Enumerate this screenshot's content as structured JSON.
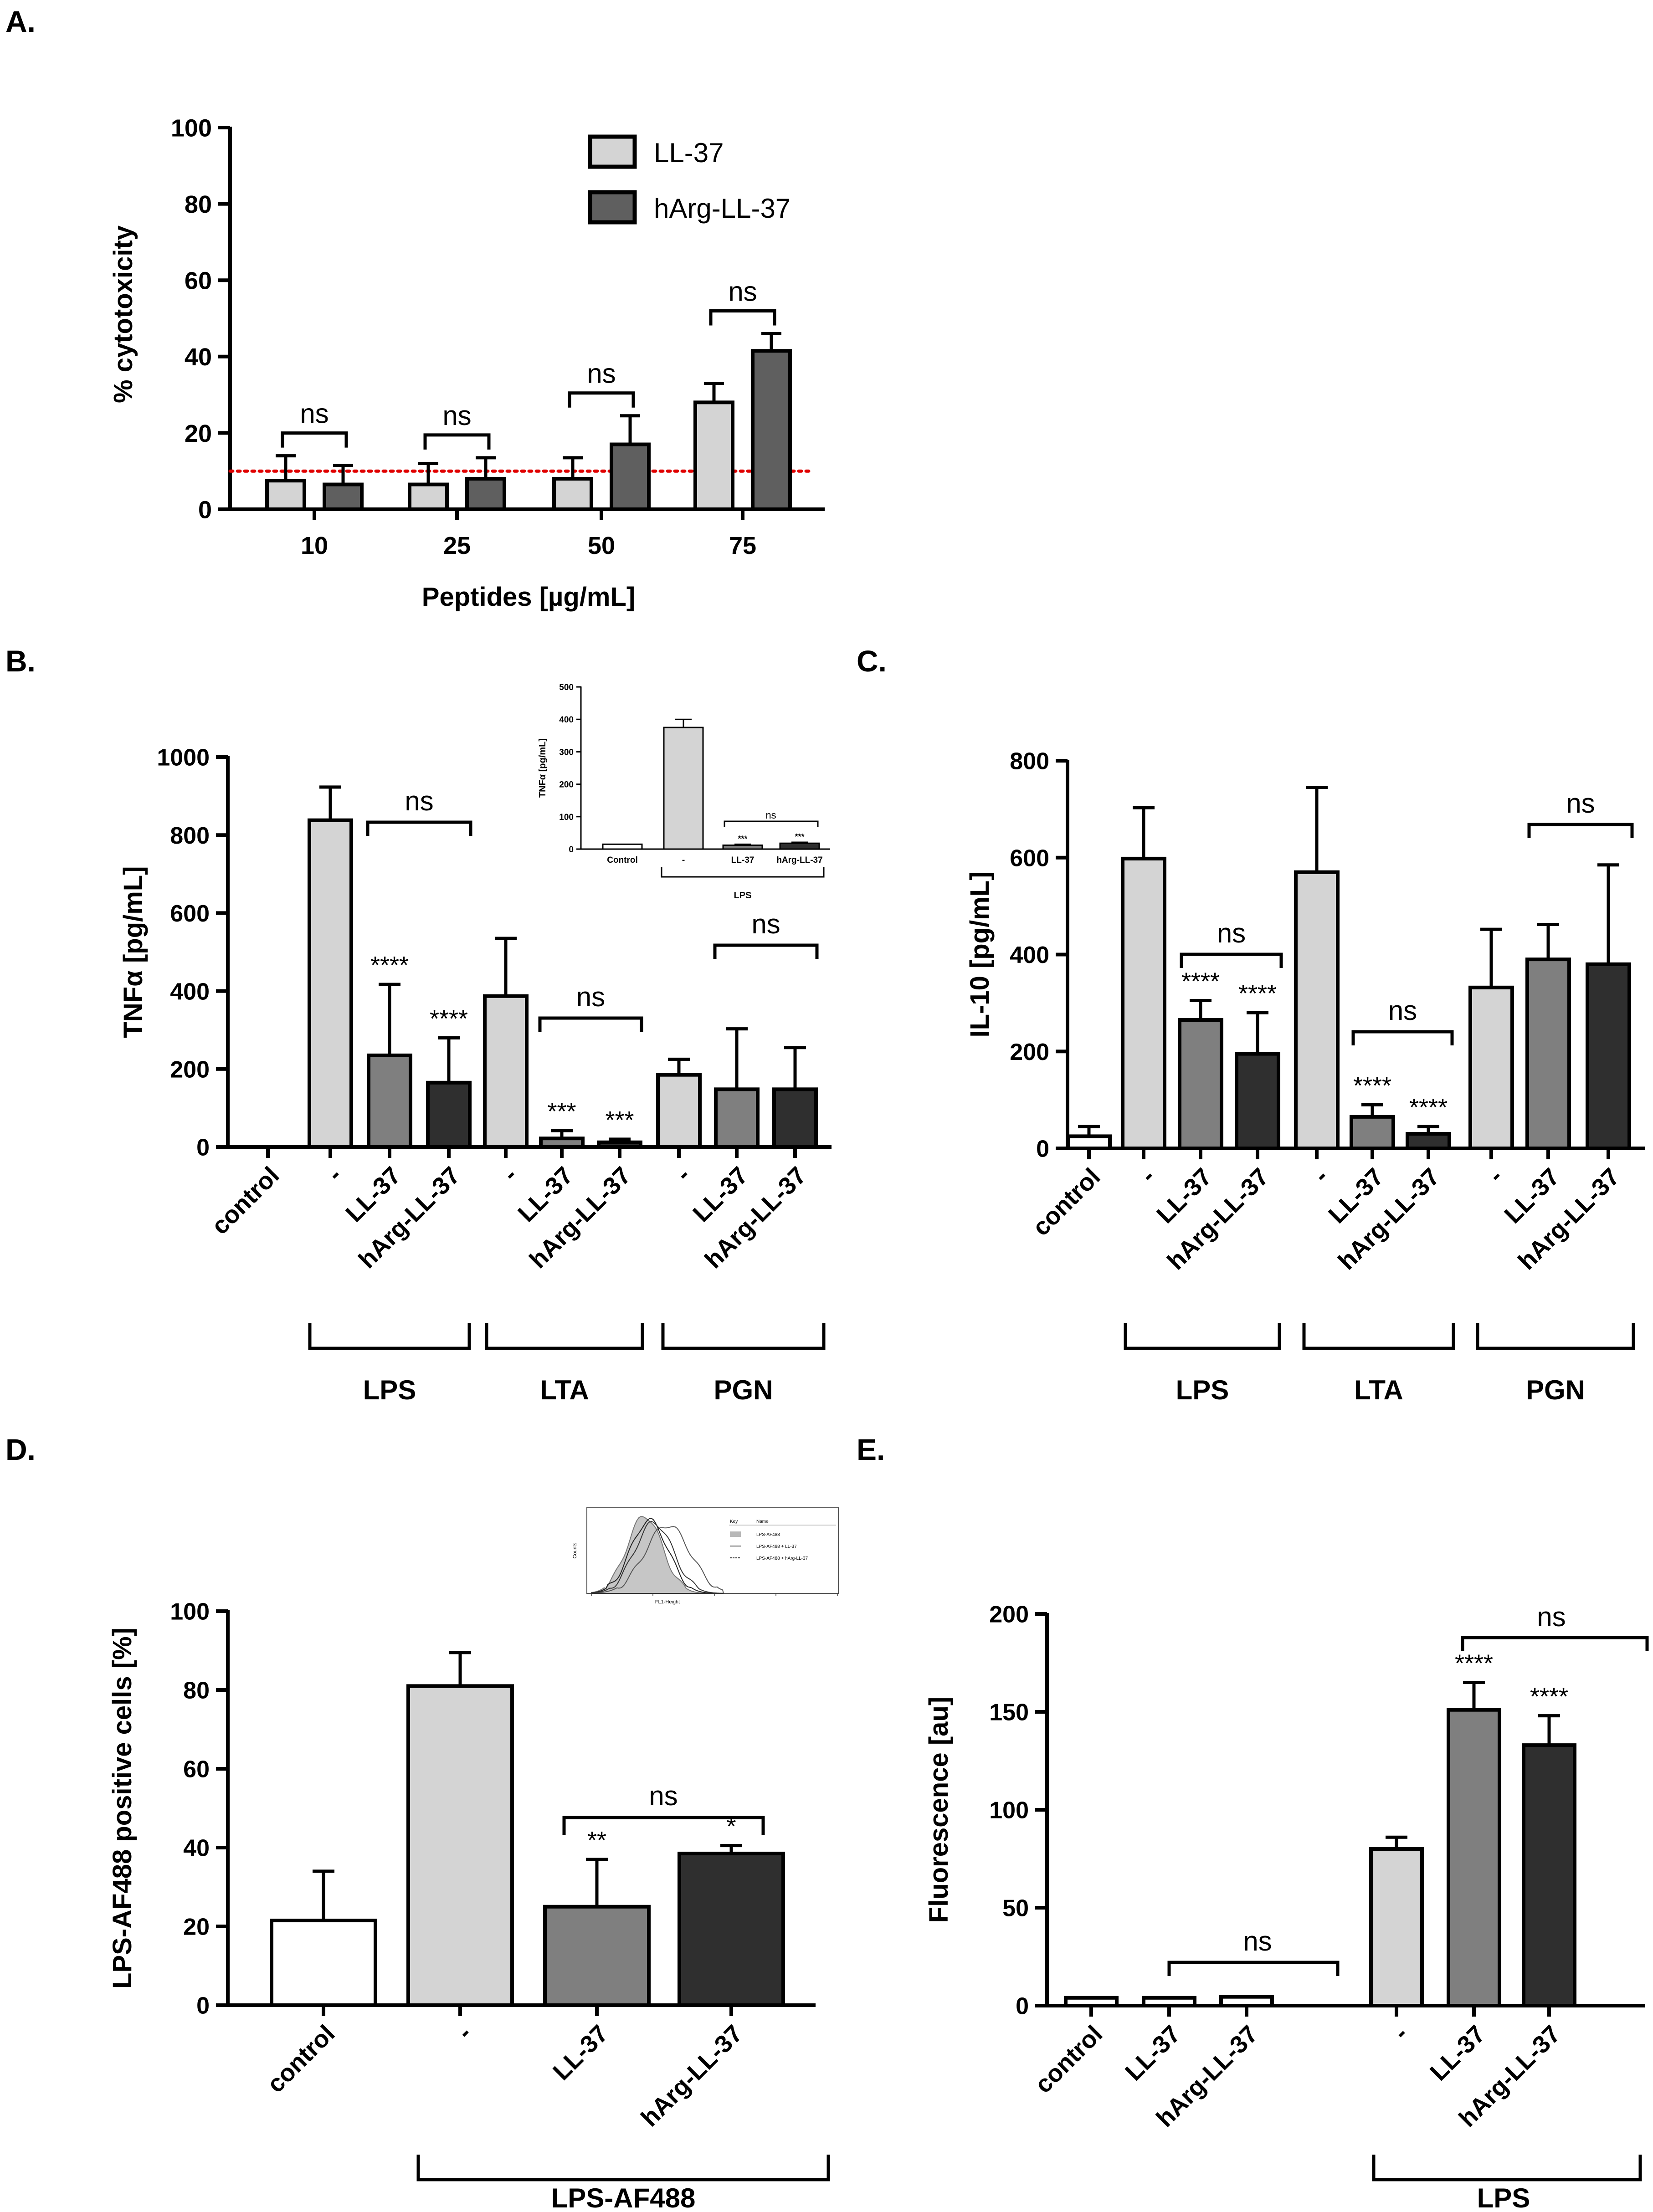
{
  "figure": {
    "panels": [
      "A.",
      "B.",
      "C.",
      "D.",
      "E."
    ]
  },
  "chart_data": [
    {
      "id": "A",
      "type": "bar",
      "panel_label": "A.",
      "title": "",
      "xlabel": "Peptides [µg/mL]",
      "ylabel": "% cytotoxicity",
      "ylim": [
        0,
        100
      ],
      "yticks": [
        0,
        20,
        40,
        60,
        80,
        100
      ],
      "categories": [
        "10",
        "25",
        "50",
        "75"
      ],
      "series": [
        {
          "name": "LL-37",
          "color": "#d4d4d4",
          "values": [
            7.5,
            6.5,
            8,
            28
          ],
          "errors": [
            6.5,
            5.5,
            5.5,
            5
          ]
        },
        {
          "name": "hArg-LL-37",
          "color": "#5f5f5f",
          "values": [
            6.5,
            8,
            17,
            41.5
          ],
          "errors": [
            5,
            5.5,
            7.5,
            4.5
          ]
        }
      ],
      "reference_line": {
        "value": 10,
        "color": "#e00000",
        "style": "dotted"
      },
      "annotations": [
        "ns",
        "ns",
        "ns",
        "ns"
      ],
      "legend": "top-center"
    },
    {
      "id": "B",
      "type": "bar",
      "panel_label": "B.",
      "ylabel": "TNFα [pg/mL]",
      "ylim": [
        0,
        1000
      ],
      "yticks": [
        0,
        200,
        400,
        600,
        800,
        1000
      ],
      "categories": [
        "control",
        "-",
        "LL-37",
        "hArg-LL-37",
        "-",
        "LL-37",
        "hArg-LL-37",
        "-",
        "LL-37",
        "hArg-LL-37"
      ],
      "values": [
        0,
        838,
        235,
        165,
        387,
        22,
        12,
        185,
        148,
        148
      ],
      "errors": [
        0,
        85,
        182,
        115,
        148,
        20,
        8,
        40,
        155,
        107
      ],
      "bar_colors": [
        "#ffffff",
        "#d4d4d4",
        "#7f7f7f",
        "#2f2f2f",
        "#d4d4d4",
        "#7f7f7f",
        "#2f2f2f",
        "#d4d4d4",
        "#7f7f7f",
        "#2f2f2f"
      ],
      "stars": [
        "",
        "",
        "****",
        "****",
        "",
        "***",
        "***",
        "",
        "",
        ""
      ],
      "group_labels": [
        "LPS",
        "LTA",
        "PGN"
      ],
      "comparisons": [
        "ns",
        "ns",
        "ns"
      ],
      "inset": {
        "ylabel": "TNFα [pg/mL]",
        "ylim": [
          0,
          500
        ],
        "yticks": [
          0,
          100,
          200,
          300,
          400,
          500
        ],
        "categories": [
          "Control",
          "-",
          "LL-37",
          "hArg-LL-37"
        ],
        "values": [
          15,
          375,
          12,
          18
        ],
        "errors": [
          0,
          25,
          3,
          3
        ],
        "bar_colors": [
          "#ffffff",
          "#d4d4d4",
          "#7f7f7f",
          "#2f2f2f"
        ],
        "stars": [
          "",
          "",
          "***",
          "***"
        ],
        "comparison": "ns",
        "group_label": "LPS"
      }
    },
    {
      "id": "C",
      "type": "bar",
      "panel_label": "C.",
      "ylabel": "IL-10 [pg/mL]",
      "ylim": [
        0,
        800
      ],
      "yticks": [
        0,
        200,
        400,
        600,
        800
      ],
      "categories": [
        "control",
        "-",
        "LL-37",
        "hArg-LL-37",
        "-",
        "LL-37",
        "hArg-LL-37",
        "-",
        "LL-37",
        "hArg-LL-37"
      ],
      "values": [
        25,
        598,
        265,
        195,
        570,
        65,
        30,
        332,
        390,
        380
      ],
      "errors": [
        20,
        105,
        40,
        85,
        175,
        25,
        15,
        120,
        72,
        205
      ],
      "bar_colors": [
        "#ffffff",
        "#d4d4d4",
        "#7f7f7f",
        "#2f2f2f",
        "#d4d4d4",
        "#7f7f7f",
        "#2f2f2f",
        "#d4d4d4",
        "#7f7f7f",
        "#2f2f2f"
      ],
      "stars": [
        "",
        "",
        "****",
        "****",
        "",
        "****",
        "****",
        "",
        "",
        ""
      ],
      "group_labels": [
        "LPS",
        "LTA",
        "PGN"
      ],
      "comparisons": [
        "ns",
        "ns",
        "ns"
      ]
    },
    {
      "id": "D",
      "type": "bar",
      "panel_label": "D.",
      "ylabel": "LPS-AF488 positive cells [%]",
      "ylim": [
        0,
        100
      ],
      "yticks": [
        0,
        20,
        40,
        60,
        80,
        100
      ],
      "categories": [
        "control",
        "-",
        "LL-37",
        "hArg-LL-37"
      ],
      "values": [
        21.5,
        81,
        25,
        38.5
      ],
      "errors": [
        12.5,
        8.5,
        12,
        2
      ],
      "bar_colors": [
        "#ffffff",
        "#d4d4d4",
        "#7f7f7f",
        "#2f2f2f"
      ],
      "stars": [
        "",
        "",
        "**",
        "*"
      ],
      "group_label": "LPS-AF488",
      "comparison": "ns",
      "inset": {
        "type": "histogram",
        "ylabel": "Counts",
        "xlabel": "FL1-Height",
        "legend_header": [
          "Key",
          "Name"
        ],
        "legend_entries": [
          "LPS-AF488",
          "LPS-AF488 + LL-37",
          "LPS-AF488 + hArg-LL-37"
        ]
      }
    },
    {
      "id": "E",
      "type": "bar",
      "panel_label": "E.",
      "ylabel": "Fluorescence [au]",
      "ylim": [
        0,
        200
      ],
      "yticks": [
        0,
        50,
        100,
        150,
        200
      ],
      "categories": [
        "control",
        "LL-37",
        "hArg-LL-37",
        "-",
        "LL-37",
        "hArg-LL-37"
      ],
      "values": [
        4,
        4,
        4.5,
        80,
        151,
        133
      ],
      "errors": [
        0,
        0,
        0,
        6,
        14,
        15
      ],
      "bar_colors": [
        "#ffffff",
        "#ffffff",
        "#ffffff",
        "#d4d4d4",
        "#7f7f7f",
        "#2f2f2f"
      ],
      "stars": [
        "",
        "",
        "",
        "",
        "****",
        "****"
      ],
      "group_label": "LPS",
      "comparisons": [
        "ns",
        "ns"
      ]
    }
  ]
}
